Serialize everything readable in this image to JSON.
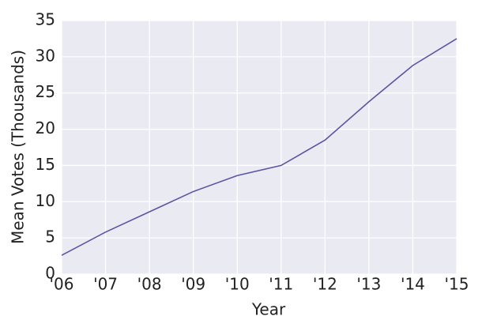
{
  "chart_data": {
    "type": "line",
    "xlabel": "Year",
    "ylabel": "Mean Votes (Thousands)",
    "categories": [
      "'06",
      "'07",
      "'08",
      "'09",
      "'10",
      "'11",
      "'12",
      "'13",
      "'14",
      "'15"
    ],
    "values": [
      2.6,
      5.8,
      8.6,
      11.4,
      13.6,
      15.0,
      18.5,
      23.8,
      28.8,
      32.5
    ],
    "color": "#5b55a3",
    "ylim": [
      0,
      35
    ],
    "yticks": [
      0,
      5,
      10,
      15,
      20,
      25,
      30,
      35
    ],
    "grid": true
  }
}
